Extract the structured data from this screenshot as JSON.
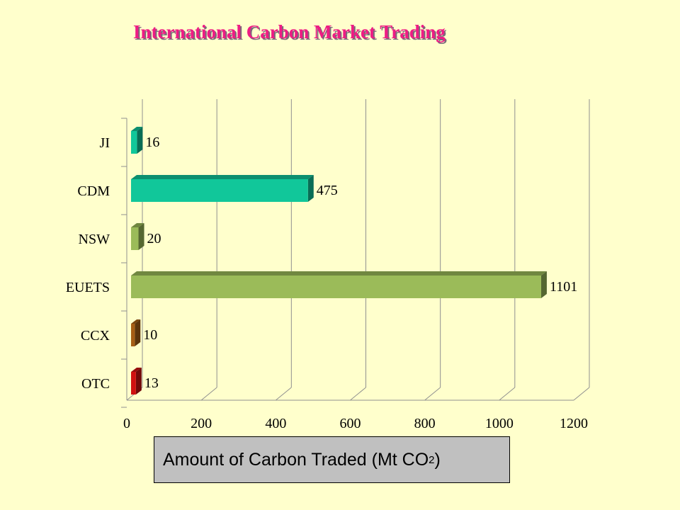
{
  "chart_data": {
    "type": "bar",
    "orientation": "horizontal",
    "title": "International Carbon Market Trading",
    "xlabel": "Amount  of Carbon Traded  (Mt CO",
    "xlabel_subscript": "2",
    "xlabel_suffix": ")",
    "categories": [
      "JI",
      "CDM",
      "NSW",
      "EUETS",
      "CCX",
      "OTC"
    ],
    "values": [
      16,
      475,
      20,
      1101,
      10,
      13
    ],
    "colors": [
      "#11c79a",
      "#11c79a",
      "#9bbb59",
      "#9bbb59",
      "#a65e14",
      "#d01010"
    ],
    "xlim": [
      0,
      1200
    ],
    "xticks": [
      "0",
      "200",
      "400",
      "600",
      "800",
      "1000",
      "1200"
    ],
    "grid": true,
    "data_labels": true
  }
}
